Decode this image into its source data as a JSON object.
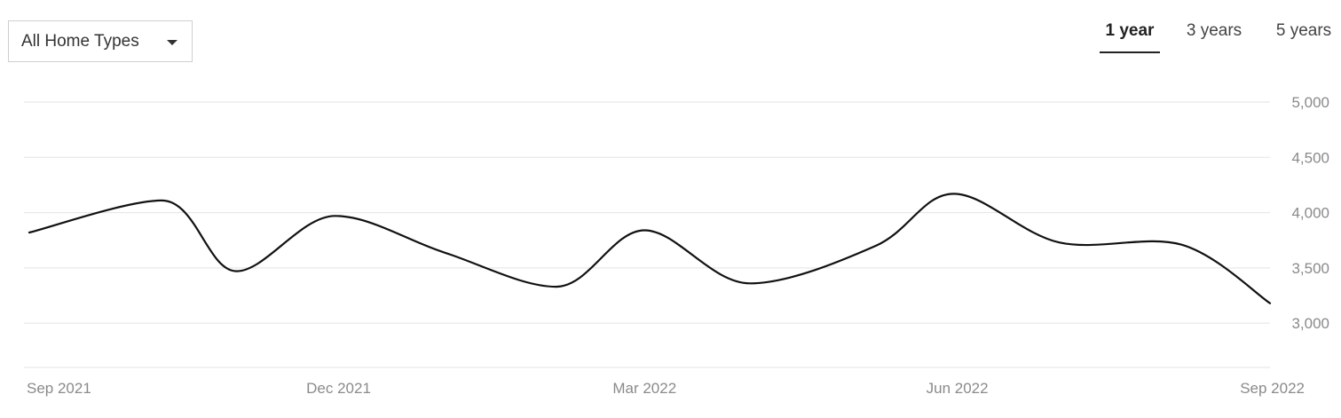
{
  "filter": {
    "selected": "All Home Types",
    "icon": "caret-down-icon"
  },
  "range_tabs": [
    {
      "label": "1 year",
      "active": true
    },
    {
      "label": "3 years",
      "active": false
    },
    {
      "label": "5 years",
      "active": false
    }
  ],
  "colors": {
    "line": "#111111",
    "grid": "#e3e3e3",
    "tick_text": "#8a8a8a"
  },
  "chart_data": {
    "type": "line",
    "ylim": [
      2600,
      5000
    ],
    "y_ticks": [
      3000,
      3500,
      4000,
      4500,
      5000
    ],
    "y_tick_labels": [
      "3,000",
      "3,500",
      "4,000",
      "4,500",
      "5,000"
    ],
    "x_ticks": [
      "2021-09-01",
      "2021-12-01",
      "2022-03-01",
      "2022-06-01",
      "2022-09-01"
    ],
    "x_tick_labels": [
      "Sep 2021",
      "Dec 2021",
      "Mar 2022",
      "Jun 2022",
      "Sep 2022"
    ],
    "grid": true,
    "series": [
      {
        "points": [
          {
            "x": "2021-09-01",
            "y": 3820
          },
          {
            "x": "2021-10-10",
            "y": 4110
          },
          {
            "x": "2021-11-01",
            "y": 3470
          },
          {
            "x": "2021-11-30",
            "y": 3970
          },
          {
            "x": "2022-01-01",
            "y": 3640
          },
          {
            "x": "2022-02-03",
            "y": 3330
          },
          {
            "x": "2022-03-01",
            "y": 3840
          },
          {
            "x": "2022-04-01",
            "y": 3360
          },
          {
            "x": "2022-05-08",
            "y": 3700
          },
          {
            "x": "2022-05-31",
            "y": 4170
          },
          {
            "x": "2022-07-01",
            "y": 3730
          },
          {
            "x": "2022-08-06",
            "y": 3710
          },
          {
            "x": "2022-09-01",
            "y": 3180
          }
        ]
      }
    ]
  }
}
